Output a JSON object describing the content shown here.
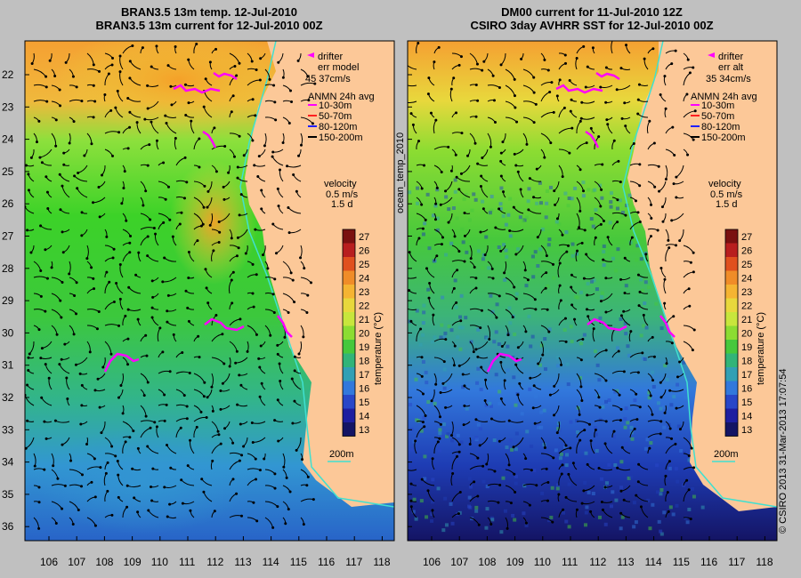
{
  "panels": [
    {
      "id": "left",
      "title_line1": "BRAN3.5 13m temp. 12-Jul-2010",
      "title_line2": "BRAN3.5 13m current for 12-Jul-2010 00Z",
      "legend_drifter_title": "drifter",
      "legend_drifter_sub": "err model",
      "legend_drifter_speed": "45 37cm/s"
    },
    {
      "id": "right",
      "title_line1": "DM00 current for 11-Jul-2010 12Z",
      "title_line2": "CSIRO 3day AVHRR SST for 12-Jul-2010 00Z",
      "legend_drifter_title": "drifter",
      "legend_drifter_sub": "err alt",
      "legend_drifter_speed": "35 34cm/s"
    }
  ],
  "legend": {
    "anmn_title": "ANMN 24h avg",
    "depths": [
      {
        "label": "10-30m",
        "color": "#ff00ff"
      },
      {
        "label": "50-70m",
        "color": "#ff2020"
      },
      {
        "label": "80-120m",
        "color": "#2020ff"
      },
      {
        "label": "150-200m",
        "color": "#000000"
      }
    ],
    "velocity_title": "velocity",
    "velocity_scale": "0.5 m/s",
    "velocity_time": "1.5 d",
    "isobath_label": "200m",
    "isobath_color": "#40e0d0"
  },
  "colorbar": {
    "label": "temperature (°C)",
    "ticks": [
      "27",
      "26",
      "25",
      "24",
      "23",
      "22",
      "21",
      "20",
      "19",
      "18",
      "17",
      "16",
      "15",
      "14",
      "13"
    ],
    "colors": [
      "#7a1010",
      "#b81e1e",
      "#e0501e",
      "#f08c28",
      "#f5b432",
      "#e8d83c",
      "#c8e63c",
      "#8cdc32",
      "#46c83c",
      "#32b478",
      "#32a0b4",
      "#3278dc",
      "#2846c8",
      "#1e1ea0",
      "#141464"
    ]
  },
  "axes": {
    "lat_ticks": [
      "22",
      "23",
      "24",
      "25",
      "26",
      "27",
      "28",
      "29",
      "30",
      "31",
      "32",
      "33",
      "34",
      "35",
      "36"
    ],
    "lon_ticks": [
      "106",
      "107",
      "108",
      "109",
      "110",
      "111",
      "112",
      "113",
      "114",
      "115",
      "116",
      "117",
      "118"
    ]
  },
  "side_labels": {
    "left": "ocean_temp_2010",
    "right": "© CSIRO 2013   31-Mar-2013 17:07:54"
  },
  "colors": {
    "land": "#fcc898",
    "coastline": "#40e0d0"
  }
}
